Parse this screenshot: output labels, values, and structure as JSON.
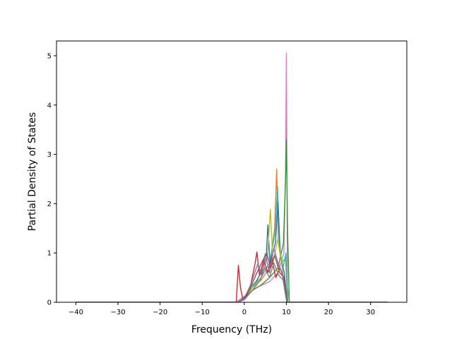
{
  "chart_data": {
    "type": "line",
    "title": "",
    "xlabel": "Frequency (THz)",
    "ylabel": "Partial Density of States",
    "xlim": [
      -44.6,
      38.6
    ],
    "ylim": [
      0,
      5.3
    ],
    "xticks": [
      -40,
      -30,
      -20,
      -10,
      0,
      10,
      20,
      30
    ],
    "yticks": [
      0,
      1,
      2,
      3,
      4,
      5
    ],
    "grid": false,
    "legend": "none",
    "series": [
      {
        "color": "#e377c2",
        "x": [
          -40,
          -2,
          0,
          3,
          6,
          8,
          9.4,
          9.8,
          10.0,
          10.25,
          10.7,
          34
        ],
        "y": [
          0,
          0,
          0.12,
          0.3,
          0.42,
          0.6,
          1.0,
          2.6,
          5.05,
          0.3,
          0,
          0
        ]
      },
      {
        "color": "#2ca02c",
        "x": [
          -40,
          -1.5,
          0,
          2,
          4,
          6,
          8,
          9.3,
          9.8,
          10.0,
          10.3,
          10.7,
          34
        ],
        "y": [
          0,
          0,
          0.08,
          0.25,
          0.35,
          0.5,
          0.7,
          1.2,
          2.5,
          3.3,
          1.4,
          0,
          0
        ]
      },
      {
        "color": "#ff7f0e",
        "x": [
          -40,
          -1.5,
          0,
          2,
          4,
          6,
          7.2,
          7.7,
          8.1,
          8.8,
          9.8,
          10.3,
          34
        ],
        "y": [
          0,
          0,
          0.1,
          0.3,
          0.45,
          0.7,
          1.5,
          2.7,
          1.2,
          0.8,
          0.9,
          0,
          0
        ]
      },
      {
        "color": "#17becf",
        "x": [
          -40,
          -1.5,
          0,
          2,
          4,
          6,
          7.3,
          7.9,
          8.4,
          9.2,
          9.9,
          10.3,
          34
        ],
        "y": [
          0,
          0,
          0.1,
          0.35,
          0.5,
          0.8,
          1.4,
          2.35,
          1.1,
          0.7,
          1.0,
          0,
          0
        ]
      },
      {
        "color": "#1f77b4",
        "x": [
          -40,
          -1.5,
          0,
          2,
          4,
          5.2,
          5.6,
          6.1,
          7.4,
          8.0,
          8.6,
          9.5,
          10.2,
          34
        ],
        "y": [
          0,
          0,
          0.1,
          0.3,
          0.6,
          0.9,
          1.57,
          0.8,
          1.2,
          2.02,
          0.9,
          0.6,
          0,
          0
        ]
      },
      {
        "color": "#bcbd22",
        "x": [
          -40,
          -1.5,
          0,
          2,
          4,
          5.5,
          6.2,
          6.8,
          8.0,
          9.0,
          10.1,
          34
        ],
        "y": [
          0,
          0,
          0.08,
          0.3,
          0.5,
          0.9,
          1.89,
          0.8,
          1.3,
          0.7,
          0,
          0
        ]
      },
      {
        "color": "#d62728",
        "x": [
          -40,
          -1.9,
          -1.4,
          -0.9,
          -0.3,
          0.5,
          1.5,
          2.6,
          3.0,
          3.6,
          4.6,
          5.6,
          6.5,
          7.5,
          8.5,
          9.6,
          10.2,
          34
        ],
        "y": [
          0,
          0,
          0.75,
          0.3,
          0.05,
          0.1,
          0.35,
          0.8,
          1.02,
          0.55,
          0.85,
          0.6,
          0.9,
          0.5,
          0.7,
          0.4,
          0,
          0
        ]
      },
      {
        "color": "#9467bd",
        "x": [
          -40,
          -1.5,
          0,
          1.5,
          3.2,
          4.1,
          5.0,
          6.0,
          7.0,
          8.0,
          9.0,
          10.1,
          34
        ],
        "y": [
          0,
          0,
          0.08,
          0.35,
          0.78,
          0.55,
          0.98,
          0.6,
          1.1,
          0.8,
          0.6,
          0,
          0
        ]
      },
      {
        "color": "#8c564b",
        "x": [
          -40,
          -1.5,
          0,
          1.5,
          3.0,
          4.4,
          5.3,
          6.3,
          7.2,
          8.4,
          9.5,
          10.1,
          34
        ],
        "y": [
          0,
          0,
          0.06,
          0.3,
          0.6,
          0.85,
          1.0,
          0.7,
          0.95,
          0.6,
          0.5,
          0,
          0
        ]
      },
      {
        "color": "#7f7f7f",
        "x": [
          -40,
          -1.5,
          0,
          2,
          3.8,
          4.8,
          6.0,
          7.0,
          8.2,
          9.2,
          10.1,
          34
        ],
        "y": [
          0,
          0,
          0.05,
          0.25,
          0.45,
          0.7,
          0.5,
          0.8,
          0.55,
          0.45,
          0,
          0
        ]
      }
    ]
  }
}
